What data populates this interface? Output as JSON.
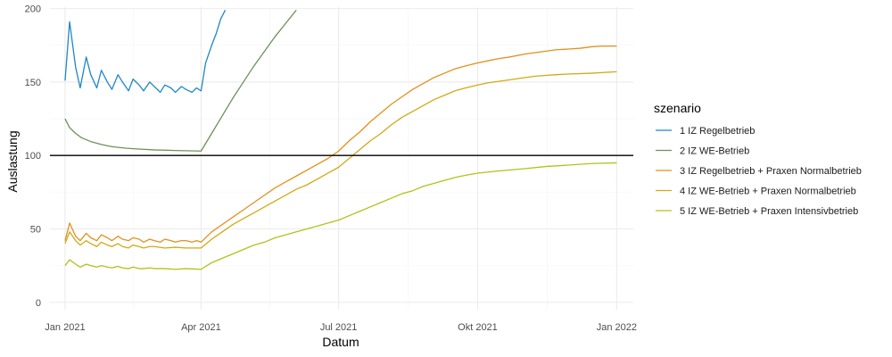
{
  "chart_data": {
    "type": "line",
    "xlabel": "Datum",
    "ylabel": "Auslastung",
    "x_ticks": [
      {
        "date": "2021-01-01",
        "label": "Jan 2021"
      },
      {
        "date": "2021-04-01",
        "label": "Apr 2021"
      },
      {
        "date": "2021-07-01",
        "label": "Jul 2021"
      },
      {
        "date": "2021-10-01",
        "label": "Okt 2021"
      },
      {
        "date": "2022-01-01",
        "label": "Jan 2022"
      }
    ],
    "xlim": [
      "2020-12-22",
      "2022-01-12"
    ],
    "y_ticks": [
      0,
      50,
      100,
      150,
      200
    ],
    "ylim": [
      -5,
      201
    ],
    "hline": 100,
    "grid": true,
    "legend": {
      "title": "szenario",
      "position": "right"
    },
    "series": [
      {
        "name": "1 IZ Regelbetrieb",
        "color": "#1f86c4",
        "points": [
          [
            "2021-01-01",
            151
          ],
          [
            "2021-01-04",
            191
          ],
          [
            "2021-01-08",
            160
          ],
          [
            "2021-01-11",
            146
          ],
          [
            "2021-01-15",
            167
          ],
          [
            "2021-01-18",
            155
          ],
          [
            "2021-01-22",
            146
          ],
          [
            "2021-01-25",
            158
          ],
          [
            "2021-01-29",
            150
          ],
          [
            "2021-02-01",
            145
          ],
          [
            "2021-02-05",
            155
          ],
          [
            "2021-02-08",
            150
          ],
          [
            "2021-02-12",
            144
          ],
          [
            "2021-02-15",
            152
          ],
          [
            "2021-02-19",
            148
          ],
          [
            "2021-02-22",
            144
          ],
          [
            "2021-02-26",
            150
          ],
          [
            "2021-03-01",
            147
          ],
          [
            "2021-03-05",
            143
          ],
          [
            "2021-03-08",
            148
          ],
          [
            "2021-03-12",
            146
          ],
          [
            "2021-03-15",
            143
          ],
          [
            "2021-03-19",
            147
          ],
          [
            "2021-03-22",
            145
          ],
          [
            "2021-03-26",
            143
          ],
          [
            "2021-03-29",
            146
          ],
          [
            "2021-04-01",
            144
          ],
          [
            "2021-04-04",
            163
          ],
          [
            "2021-04-08",
            175
          ],
          [
            "2021-04-11",
            183
          ],
          [
            "2021-04-14",
            193
          ],
          [
            "2021-04-17",
            199
          ]
        ]
      },
      {
        "name": "2 IZ WE-Betrieb",
        "color": "#6e9157",
        "points": [
          [
            "2021-01-01",
            125
          ],
          [
            "2021-01-04",
            119
          ],
          [
            "2021-01-08",
            115
          ],
          [
            "2021-01-12",
            112
          ],
          [
            "2021-01-18",
            109.5
          ],
          [
            "2021-01-25",
            107.5
          ],
          [
            "2021-02-01",
            106
          ],
          [
            "2021-02-10",
            105
          ],
          [
            "2021-02-20",
            104.3
          ],
          [
            "2021-03-01",
            103.8
          ],
          [
            "2021-03-15",
            103.4
          ],
          [
            "2021-04-01",
            103
          ],
          [
            "2021-04-08",
            115
          ],
          [
            "2021-04-15",
            127
          ],
          [
            "2021-04-22",
            139
          ],
          [
            "2021-04-29",
            150
          ],
          [
            "2021-05-06",
            161
          ],
          [
            "2021-05-13",
            171
          ],
          [
            "2021-05-20",
            181
          ],
          [
            "2021-05-27",
            190
          ],
          [
            "2021-06-03",
            199
          ]
        ]
      },
      {
        "name": "3 IZ Regelbetrieb + Praxen Normalbetrieb",
        "color": "#e3901c",
        "points": [
          [
            "2021-01-01",
            42
          ],
          [
            "2021-01-04",
            54
          ],
          [
            "2021-01-08",
            45
          ],
          [
            "2021-01-11",
            42
          ],
          [
            "2021-01-15",
            47
          ],
          [
            "2021-01-18",
            44
          ],
          [
            "2021-01-22",
            42
          ],
          [
            "2021-01-25",
            46
          ],
          [
            "2021-01-29",
            44
          ],
          [
            "2021-02-01",
            42
          ],
          [
            "2021-02-05",
            45
          ],
          [
            "2021-02-08",
            43
          ],
          [
            "2021-02-12",
            42
          ],
          [
            "2021-02-15",
            44
          ],
          [
            "2021-02-19",
            43
          ],
          [
            "2021-02-22",
            41
          ],
          [
            "2021-02-26",
            43
          ],
          [
            "2021-03-01",
            42
          ],
          [
            "2021-03-05",
            41
          ],
          [
            "2021-03-08",
            43
          ],
          [
            "2021-03-12",
            42
          ],
          [
            "2021-03-15",
            41
          ],
          [
            "2021-03-19",
            42
          ],
          [
            "2021-03-22",
            42
          ],
          [
            "2021-03-26",
            41
          ],
          [
            "2021-03-29",
            42
          ],
          [
            "2021-04-01",
            41
          ],
          [
            "2021-04-08",
            48
          ],
          [
            "2021-04-15",
            53
          ],
          [
            "2021-04-22",
            58
          ],
          [
            "2021-04-29",
            63
          ],
          [
            "2021-05-06",
            68
          ],
          [
            "2021-05-13",
            73
          ],
          [
            "2021-05-20",
            78
          ],
          [
            "2021-05-27",
            82
          ],
          [
            "2021-06-03",
            86
          ],
          [
            "2021-06-10",
            90
          ],
          [
            "2021-06-17",
            94
          ],
          [
            "2021-06-24",
            98
          ],
          [
            "2021-07-01",
            103
          ],
          [
            "2021-07-08",
            110
          ],
          [
            "2021-07-15",
            116
          ],
          [
            "2021-07-22",
            123
          ],
          [
            "2021-07-29",
            129
          ],
          [
            "2021-08-05",
            135
          ],
          [
            "2021-08-12",
            140
          ],
          [
            "2021-08-19",
            145
          ],
          [
            "2021-08-26",
            149
          ],
          [
            "2021-09-02",
            153
          ],
          [
            "2021-09-09",
            156
          ],
          [
            "2021-09-16",
            159
          ],
          [
            "2021-09-23",
            161
          ],
          [
            "2021-10-01",
            163
          ],
          [
            "2021-10-08",
            164.5
          ],
          [
            "2021-10-15",
            166
          ],
          [
            "2021-10-22",
            167
          ],
          [
            "2021-11-01",
            169
          ],
          [
            "2021-11-08",
            170
          ],
          [
            "2021-11-15",
            171
          ],
          [
            "2021-11-22",
            172
          ],
          [
            "2021-12-01",
            172.5
          ],
          [
            "2021-12-08",
            173
          ],
          [
            "2021-12-15",
            174
          ],
          [
            "2021-12-22",
            174.5
          ],
          [
            "2022-01-01",
            174.5
          ]
        ]
      },
      {
        "name": "4 IZ WE-Betrieb + Praxen Normalbetrieb",
        "color": "#d1a916",
        "points": [
          [
            "2021-01-01",
            40
          ],
          [
            "2021-01-04",
            48
          ],
          [
            "2021-01-08",
            42
          ],
          [
            "2021-01-11",
            39
          ],
          [
            "2021-01-15",
            42
          ],
          [
            "2021-01-18",
            40
          ],
          [
            "2021-01-22",
            38
          ],
          [
            "2021-01-25",
            41
          ],
          [
            "2021-01-29",
            39
          ],
          [
            "2021-02-01",
            38
          ],
          [
            "2021-02-05",
            40
          ],
          [
            "2021-02-08",
            38
          ],
          [
            "2021-02-12",
            37
          ],
          [
            "2021-02-15",
            39
          ],
          [
            "2021-02-19",
            38
          ],
          [
            "2021-02-22",
            37
          ],
          [
            "2021-02-26",
            38
          ],
          [
            "2021-03-01",
            38
          ],
          [
            "2021-03-08",
            37
          ],
          [
            "2021-03-15",
            37.5
          ],
          [
            "2021-03-22",
            37
          ],
          [
            "2021-04-01",
            37
          ],
          [
            "2021-04-08",
            43
          ],
          [
            "2021-04-15",
            48
          ],
          [
            "2021-04-22",
            53
          ],
          [
            "2021-04-29",
            57
          ],
          [
            "2021-05-06",
            61
          ],
          [
            "2021-05-13",
            65
          ],
          [
            "2021-05-20",
            69
          ],
          [
            "2021-05-27",
            73
          ],
          [
            "2021-06-03",
            77
          ],
          [
            "2021-06-10",
            80
          ],
          [
            "2021-06-17",
            84
          ],
          [
            "2021-06-24",
            88
          ],
          [
            "2021-07-01",
            92
          ],
          [
            "2021-07-08",
            98
          ],
          [
            "2021-07-15",
            104
          ],
          [
            "2021-07-22",
            110
          ],
          [
            "2021-07-29",
            115
          ],
          [
            "2021-08-05",
            121
          ],
          [
            "2021-08-12",
            126
          ],
          [
            "2021-08-19",
            130
          ],
          [
            "2021-08-26",
            134
          ],
          [
            "2021-09-02",
            138
          ],
          [
            "2021-09-09",
            141
          ],
          [
            "2021-09-16",
            144
          ],
          [
            "2021-09-23",
            146
          ],
          [
            "2021-10-01",
            148
          ],
          [
            "2021-10-08",
            149.5
          ],
          [
            "2021-10-15",
            150.5
          ],
          [
            "2021-10-22",
            151.5
          ],
          [
            "2021-11-01",
            153
          ],
          [
            "2021-11-08",
            154
          ],
          [
            "2021-11-15",
            154.5
          ],
          [
            "2021-11-22",
            155
          ],
          [
            "2021-12-01",
            155.5
          ],
          [
            "2021-12-15",
            156
          ],
          [
            "2022-01-01",
            157
          ]
        ]
      },
      {
        "name": "5 IZ WE-Betrieb + Praxen Intensivbetrieb",
        "color": "#b2c21a",
        "points": [
          [
            "2021-01-01",
            25
          ],
          [
            "2021-01-04",
            29
          ],
          [
            "2021-01-08",
            26
          ],
          [
            "2021-01-11",
            24
          ],
          [
            "2021-01-15",
            26
          ],
          [
            "2021-01-18",
            25
          ],
          [
            "2021-01-22",
            24
          ],
          [
            "2021-01-25",
            25
          ],
          [
            "2021-01-29",
            24
          ],
          [
            "2021-02-01",
            23.5
          ],
          [
            "2021-02-05",
            24.5
          ],
          [
            "2021-02-08",
            23.5
          ],
          [
            "2021-02-12",
            23
          ],
          [
            "2021-02-15",
            24
          ],
          [
            "2021-02-19",
            23
          ],
          [
            "2021-02-22",
            23
          ],
          [
            "2021-02-26",
            23.5
          ],
          [
            "2021-03-01",
            23
          ],
          [
            "2021-03-08",
            23
          ],
          [
            "2021-03-15",
            22.5
          ],
          [
            "2021-03-22",
            23
          ],
          [
            "2021-04-01",
            22.5
          ],
          [
            "2021-04-08",
            27
          ],
          [
            "2021-04-15",
            30
          ],
          [
            "2021-04-22",
            33
          ],
          [
            "2021-04-29",
            36
          ],
          [
            "2021-05-06",
            39
          ],
          [
            "2021-05-13",
            41
          ],
          [
            "2021-05-20",
            44
          ],
          [
            "2021-05-27",
            46
          ],
          [
            "2021-06-03",
            48
          ],
          [
            "2021-06-10",
            50
          ],
          [
            "2021-06-17",
            52
          ],
          [
            "2021-06-24",
            54
          ],
          [
            "2021-07-01",
            56
          ],
          [
            "2021-07-08",
            59
          ],
          [
            "2021-07-15",
            62
          ],
          [
            "2021-07-22",
            65
          ],
          [
            "2021-07-29",
            68
          ],
          [
            "2021-08-05",
            71
          ],
          [
            "2021-08-12",
            74
          ],
          [
            "2021-08-19",
            76
          ],
          [
            "2021-08-26",
            79
          ],
          [
            "2021-09-02",
            81
          ],
          [
            "2021-09-09",
            83
          ],
          [
            "2021-09-16",
            85
          ],
          [
            "2021-09-23",
            86.5
          ],
          [
            "2021-10-01",
            88
          ],
          [
            "2021-10-15",
            89.5
          ],
          [
            "2021-11-01",
            91
          ],
          [
            "2021-11-15",
            92.5
          ],
          [
            "2021-12-01",
            93.5
          ],
          [
            "2021-12-15",
            94.5
          ],
          [
            "2022-01-01",
            95
          ]
        ]
      }
    ]
  }
}
